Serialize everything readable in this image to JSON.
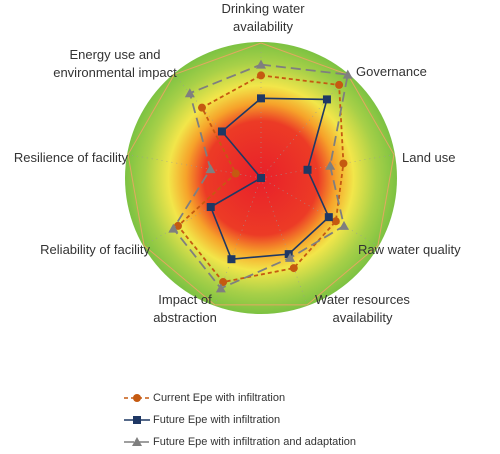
{
  "chart_data": {
    "type": "radar",
    "categories": [
      "Drinking water availability",
      "Governance",
      "Land use",
      "Raw water quality",
      "Water resources availability",
      "Impact of abstraction",
      "Reliability of facility",
      "Resilience of facility",
      "Energy use and environmental impact"
    ],
    "ylim": [
      0,
      1
    ],
    "series": [
      {
        "name": "Current Epe with infiltration",
        "color": "#c55a11",
        "marker": "circle",
        "dash": "4,3",
        "values": [
          0.76,
          0.9,
          0.62,
          0.64,
          0.71,
          0.82,
          0.71,
          0.19,
          0.68
        ]
      },
      {
        "name": "Future Epe with infiltration",
        "color": "#1f3864",
        "marker": "square",
        "dash": "none",
        "values": [
          0.59,
          0.76,
          0.35,
          0.58,
          0.6,
          0.64,
          0.43,
          0.0,
          0.45
        ]
      },
      {
        "name": "Future Epe with infiltration and adaptation",
        "color": "#7f7f7f",
        "marker": "triangle",
        "dash": "10,5",
        "values": [
          0.84,
          1.0,
          0.52,
          0.71,
          0.63,
          0.87,
          0.75,
          0.38,
          0.82
        ]
      }
    ]
  }
}
